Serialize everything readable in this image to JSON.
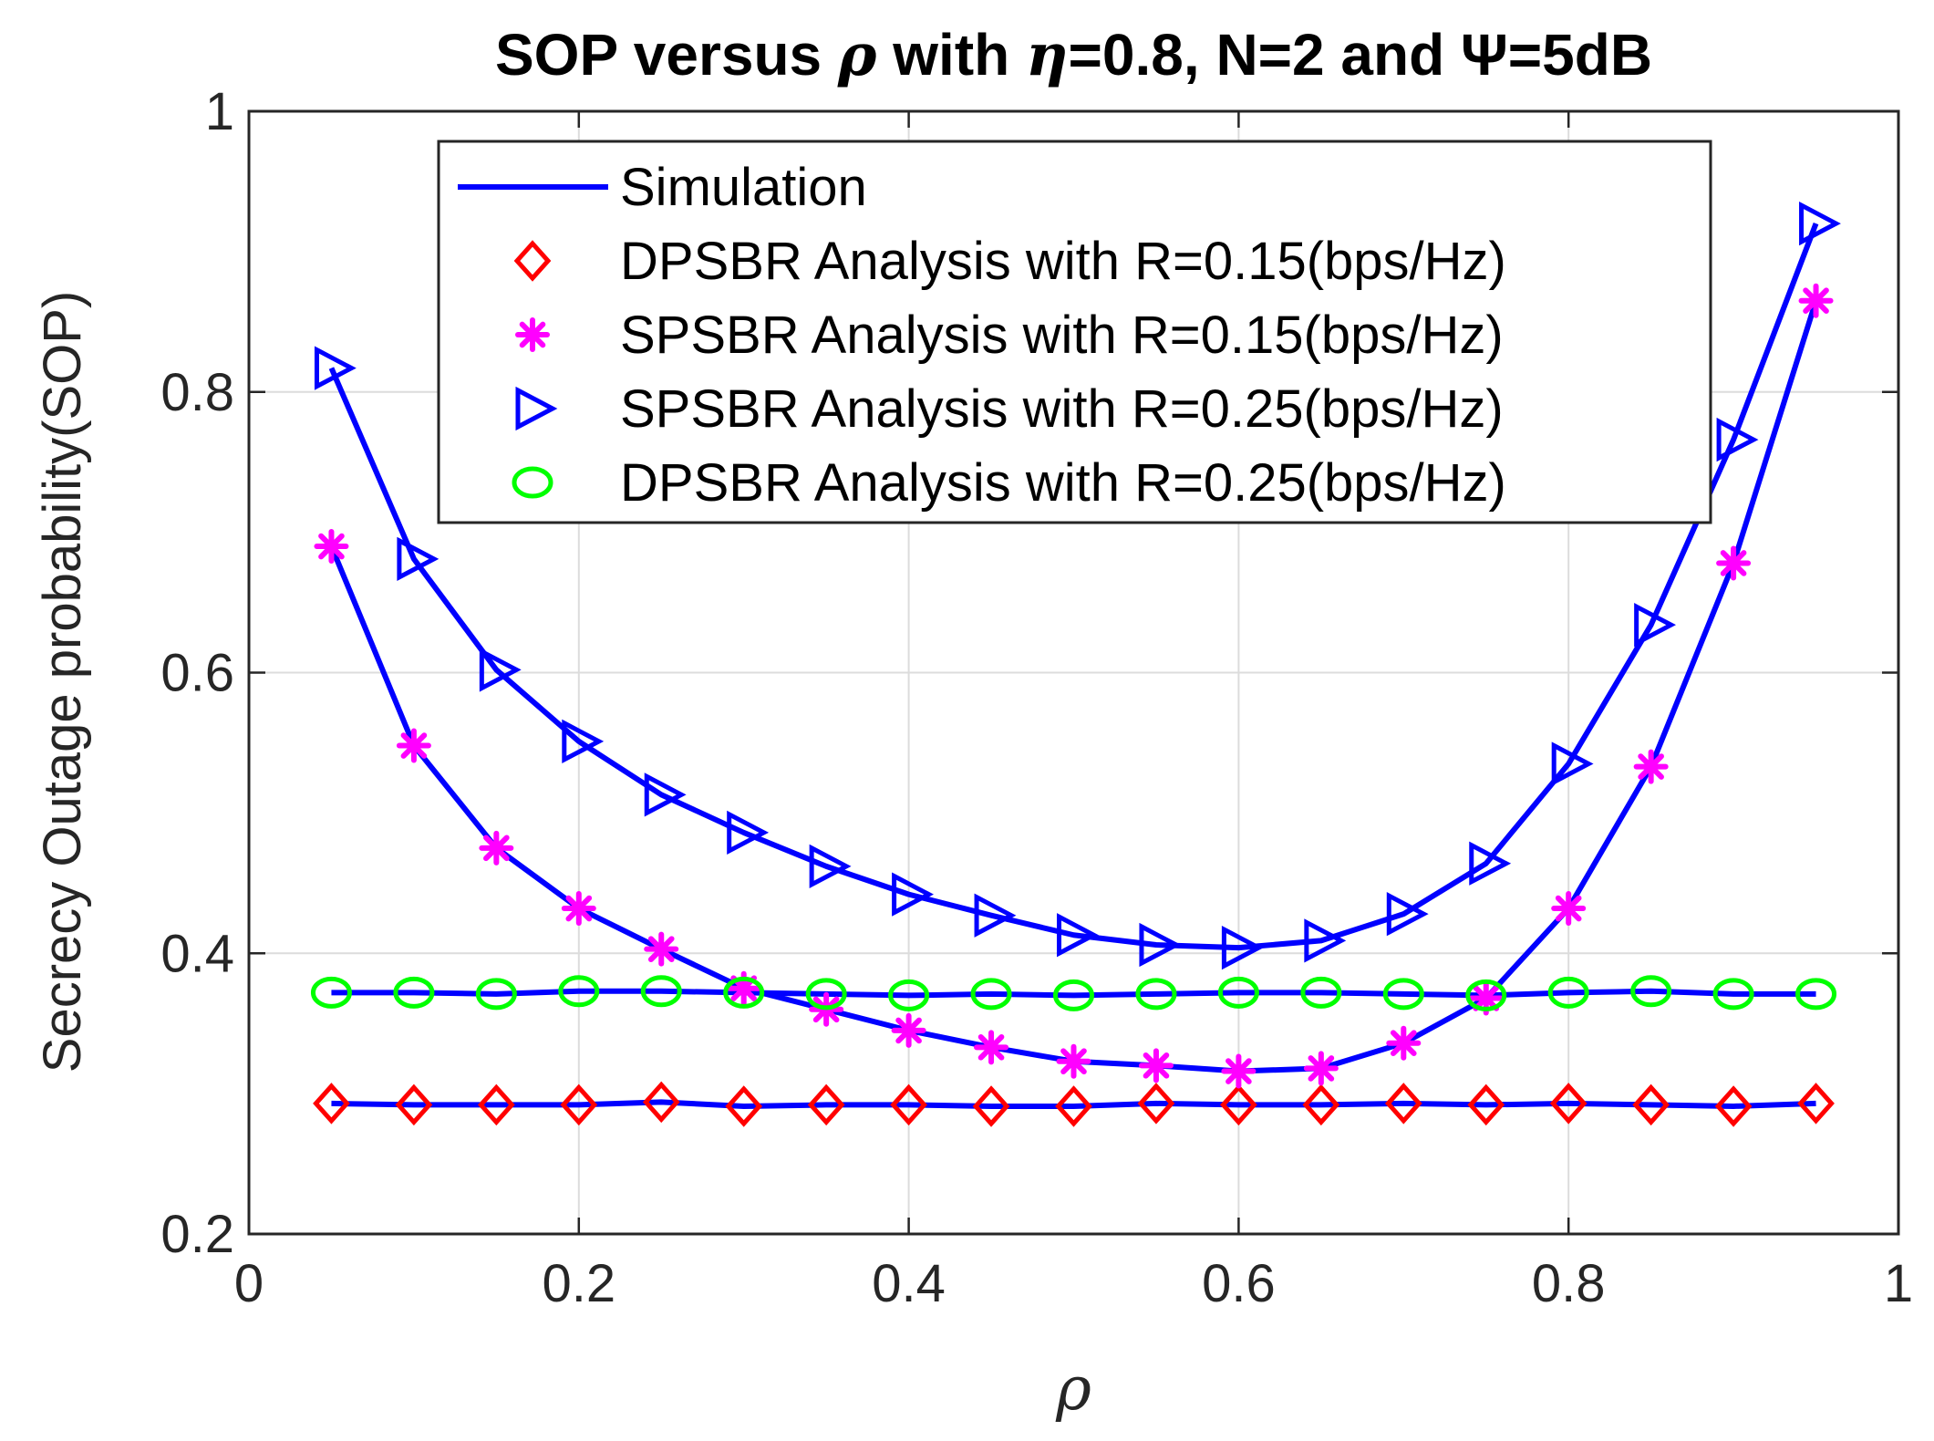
{
  "chart_data": {
    "type": "line",
    "title_parts": [
      {
        "text": "SOP versus ",
        "italic": false
      },
      {
        "text": "ρ",
        "italic": true
      },
      {
        "text": " with ",
        "italic": false
      },
      {
        "text": "η",
        "italic": true
      },
      {
        "text": "=0.8, N=2 and ",
        "italic": false
      },
      {
        "text": "Ψ",
        "italic": false
      },
      {
        "text": "=5dB",
        "italic": false
      }
    ],
    "xlabel": "ρ",
    "ylabel": "Secrecy Outage probability(SOP)",
    "xlim": [
      0,
      1
    ],
    "ylim": [
      0.2,
      1
    ],
    "xticks": [
      0,
      0.2,
      0.4,
      0.6,
      0.8,
      1
    ],
    "xtick_labels": [
      "0",
      "0.2",
      "0.4",
      "0.6",
      "0.8",
      "1"
    ],
    "yticks": [
      0.2,
      0.4,
      0.6,
      0.8,
      1
    ],
    "ytick_labels": [
      "0.2",
      "0.4",
      "0.6",
      "0.8",
      "1"
    ],
    "grid": true,
    "legend_position": "top-right",
    "x": [
      0.05,
      0.1,
      0.15,
      0.2,
      0.25,
      0.3,
      0.35,
      0.4,
      0.45,
      0.5,
      0.55,
      0.6,
      0.65,
      0.7,
      0.75,
      0.8,
      0.85,
      0.9,
      0.95
    ],
    "series": [
      {
        "name": "Simulation",
        "style": "line",
        "color": "#0000ff",
        "sim_of": [
          [
            0.293,
            0.292,
            0.292,
            0.292,
            0.294,
            0.291,
            0.292,
            0.292,
            0.291,
            0.291,
            0.293,
            0.292,
            0.292,
            0.293,
            0.292,
            0.293,
            0.292,
            0.291,
            0.293
          ],
          [
            0.372,
            0.372,
            0.371,
            0.373,
            0.373,
            0.372,
            0.371,
            0.37,
            0.371,
            0.37,
            0.371,
            0.372,
            0.372,
            0.371,
            0.37,
            0.372,
            0.373,
            0.371,
            0.371
          ],
          [
            0.69,
            0.548,
            0.475,
            0.432,
            0.403,
            0.375,
            0.36,
            0.345,
            0.333,
            0.323,
            0.32,
            0.316,
            0.318,
            0.336,
            0.368,
            0.432,
            0.533,
            0.678,
            0.865
          ],
          [
            0.817,
            0.681,
            0.602,
            0.551,
            0.513,
            0.486,
            0.462,
            0.442,
            0.427,
            0.413,
            0.406,
            0.404,
            0.409,
            0.428,
            0.464,
            0.535,
            0.634,
            0.766,
            0.92
          ]
        ]
      },
      {
        "name": "DPSBR Analysis with R=0.15(bps/Hz)",
        "style": "diamond",
        "color": "#ff0000",
        "values": [
          0.293,
          0.292,
          0.292,
          0.292,
          0.294,
          0.291,
          0.292,
          0.292,
          0.291,
          0.291,
          0.293,
          0.292,
          0.292,
          0.293,
          0.292,
          0.293,
          0.292,
          0.291,
          0.293
        ]
      },
      {
        "name": "SPSBR Analysis with R=0.15(bps/Hz)",
        "style": "asterisk",
        "color": "#ff00ff",
        "values": [
          0.69,
          0.548,
          0.475,
          0.432,
          0.403,
          0.375,
          0.36,
          0.345,
          0.333,
          0.323,
          0.32,
          0.316,
          0.318,
          0.336,
          0.368,
          0.432,
          0.533,
          0.678,
          0.865
        ]
      },
      {
        "name": "SPSBR Analysis with R=0.25(bps/Hz)",
        "style": "triangle-right",
        "color": "#0000ff",
        "values": [
          0.817,
          0.681,
          0.602,
          0.551,
          0.513,
          0.486,
          0.462,
          0.442,
          0.427,
          0.413,
          0.406,
          0.404,
          0.409,
          0.428,
          0.464,
          0.535,
          0.634,
          0.766,
          0.92
        ]
      },
      {
        "name": "DPSBR Analysis with R=0.25(bps/Hz)",
        "style": "circle",
        "color": "#00ff00",
        "values": [
          0.372,
          0.372,
          0.371,
          0.373,
          0.373,
          0.372,
          0.371,
          0.37,
          0.371,
          0.37,
          0.371,
          0.372,
          0.372,
          0.371,
          0.37,
          0.372,
          0.373,
          0.371,
          0.371
        ]
      }
    ]
  }
}
